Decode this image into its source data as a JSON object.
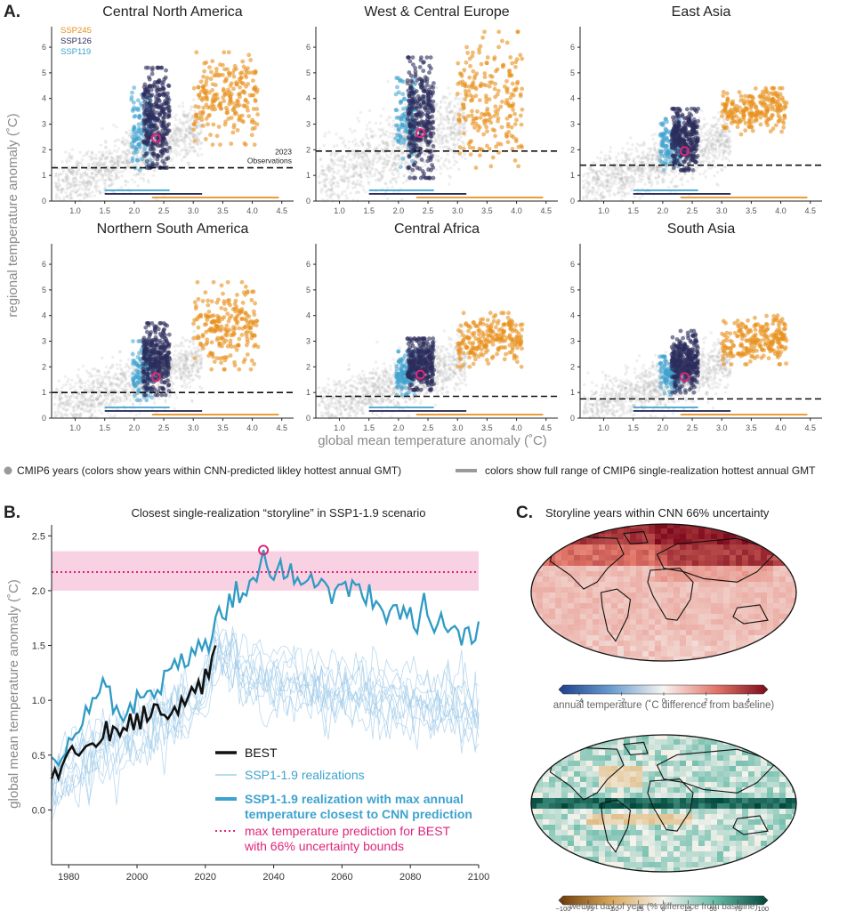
{
  "panel_letters": {
    "a": "A.",
    "b": "B.",
    "c": "C."
  },
  "panel_a": {
    "ylabel": "regional temperature anomaly (˚C)",
    "xlabel": "global mean temperature anomaly (˚C)",
    "legend_dots": "CMIP6 years (colors show years within CNN-predicted likley hottest annual GMT)",
    "legend_lines": "colors show full range of CMIP6 single-realization hottest annual GMT",
    "obs_label_1": "2023",
    "obs_label_2": "Observations",
    "scenarios": [
      {
        "name": "SSP245",
        "color": "#e8901a"
      },
      {
        "name": "SSP126",
        "color": "#2c2d5c"
      },
      {
        "name": "SSP119",
        "color": "#3ea2cf"
      }
    ],
    "ranges": {
      "SSP119": [
        1.5,
        2.6
      ],
      "SSP126": [
        1.5,
        3.15
      ],
      "SSP245": [
        2.3,
        4.45
      ]
    },
    "cloud_bounds": {
      "SSP119": [
        1.95,
        2.3
      ],
      "SSP126": [
        2.15,
        2.6
      ],
      "SSP245": [
        3.0,
        4.1
      ]
    }
  },
  "chart_data": [
    {
      "type": "scatter",
      "title": "Central North America",
      "xlim": [
        0.6,
        4.7
      ],
      "ylim": [
        0,
        6.8
      ],
      "xticks": [
        "1.0",
        "1.5",
        "2.0",
        "2.5",
        "3.0",
        "3.5",
        "4.0",
        "4.5"
      ],
      "yticks": [
        "0",
        "1",
        "2",
        "3",
        "4",
        "5",
        "6"
      ],
      "observation_2023": 1.3,
      "cnn_prediction": [
        2.37,
        2.45
      ],
      "cluster_y": {
        "SSP119": [
          1.2,
          4.6
        ],
        "SSP126": [
          1.3,
          5.2
        ],
        "SSP245": [
          2.2,
          5.8
        ]
      }
    },
    {
      "type": "scatter",
      "title": "West & Central Europe",
      "xlim": [
        0.6,
        4.7
      ],
      "ylim": [
        0,
        6.8
      ],
      "xticks": [
        "1.0",
        "1.5",
        "2.0",
        "2.5",
        "3.0",
        "3.5",
        "4.0",
        "4.5"
      ],
      "yticks": [
        "0",
        "1",
        "2",
        "3",
        "4",
        "5",
        "6"
      ],
      "observation_2023": 1.95,
      "cnn_prediction": [
        2.37,
        2.65
      ],
      "cluster_y": {
        "SSP119": [
          1.2,
          4.8
        ],
        "SSP126": [
          0.9,
          5.6
        ],
        "SSP245": [
          1.3,
          6.6
        ]
      }
    },
    {
      "type": "scatter",
      "title": "East Asia",
      "xlim": [
        0.6,
        4.7
      ],
      "ylim": [
        0,
        6.8
      ],
      "xticks": [
        "1.0",
        "1.5",
        "2.0",
        "2.5",
        "3.0",
        "3.5",
        "4.0",
        "4.5"
      ],
      "yticks": [
        "0",
        "1",
        "2",
        "3",
        "4",
        "5",
        "6"
      ],
      "observation_2023": 1.4,
      "cnn_prediction": [
        2.37,
        1.95
      ],
      "cluster_y": {
        "SSP119": [
          1.2,
          3.2
        ],
        "SSP126": [
          1.2,
          3.6
        ],
        "SSP245": [
          2.6,
          4.4
        ]
      }
    },
    {
      "type": "scatter",
      "title": "Northern South America",
      "xlim": [
        0.6,
        4.7
      ],
      "ylim": [
        0,
        6.8
      ],
      "xticks": [
        "1.0",
        "1.5",
        "2.0",
        "2.5",
        "3.0",
        "3.5",
        "4.0",
        "4.5"
      ],
      "yticks": [
        "0",
        "1",
        "2",
        "3",
        "4",
        "5",
        "6"
      ],
      "observation_2023": 1.0,
      "cnn_prediction": [
        2.37,
        1.6
      ],
      "cluster_y": {
        "SSP119": [
          0.7,
          3.0
        ],
        "SSP126": [
          0.9,
          3.7
        ],
        "SSP245": [
          1.9,
          5.3
        ]
      }
    },
    {
      "type": "scatter",
      "title": "Central Africa",
      "xlim": [
        0.6,
        4.7
      ],
      "ylim": [
        0,
        6.8
      ],
      "xticks": [
        "1.0",
        "1.5",
        "2.0",
        "2.5",
        "3.0",
        "3.5",
        "4.0",
        "4.5"
      ],
      "yticks": [
        "0",
        "1",
        "2",
        "3",
        "4",
        "5",
        "6"
      ],
      "observation_2023": 0.85,
      "cnn_prediction": [
        2.37,
        1.7
      ],
      "cluster_y": {
        "SSP119": [
          0.9,
          2.6
        ],
        "SSP126": [
          1.1,
          3.1
        ],
        "SSP245": [
          2.0,
          4.1
        ]
      }
    },
    {
      "type": "scatter",
      "title": "South Asia",
      "xlim": [
        0.6,
        4.7
      ],
      "ylim": [
        0,
        6.8
      ],
      "xticks": [
        "1.0",
        "1.5",
        "2.0",
        "2.5",
        "3.0",
        "3.5",
        "4.0",
        "4.5"
      ],
      "yticks": [
        "0",
        "1",
        "2",
        "3",
        "4",
        "5",
        "6"
      ],
      "observation_2023": 0.75,
      "cnn_prediction": [
        2.37,
        1.6
      ],
      "cluster_y": {
        "SSP119": [
          0.9,
          2.4
        ],
        "SSP126": [
          1.0,
          3.4
        ],
        "SSP245": [
          2.1,
          4.0
        ]
      }
    },
    {
      "type": "line",
      "title": "Closest single-realization “storyline” in SSP1-1.9 scenario",
      "xlim": [
        1975,
        2100
      ],
      "ylim": [
        -0.5,
        2.6
      ],
      "xticks": [
        1980,
        2000,
        2020,
        2040,
        2060,
        2080,
        2100
      ],
      "yticks": [
        "0.0",
        "0.5",
        "1.0",
        "1.5",
        "2.0",
        "2.5"
      ],
      "ylabel": "global mean temperature anomaly (˚C)",
      "cnn_prediction": 2.17,
      "uncertainty_band": [
        2.0,
        2.36
      ],
      "storyline_peak": {
        "x": 2037,
        "y": 2.37
      },
      "best_anchors": [
        [
          1975,
          0.28
        ],
        [
          1980,
          0.52
        ],
        [
          1985,
          0.55
        ],
        [
          1990,
          0.65
        ],
        [
          1995,
          0.72
        ],
        [
          2000,
          0.8
        ],
        [
          2005,
          0.9
        ],
        [
          2010,
          0.95
        ],
        [
          2015,
          1.05
        ],
        [
          2020,
          1.2
        ],
        [
          2023,
          1.5
        ]
      ],
      "storyline_anchors": [
        [
          1975,
          0.4
        ],
        [
          1980,
          0.55
        ],
        [
          1985,
          0.9
        ],
        [
          1990,
          1.1
        ],
        [
          1995,
          0.85
        ],
        [
          2000,
          0.95
        ],
        [
          2005,
          1.05
        ],
        [
          2010,
          1.25
        ],
        [
          2015,
          1.4
        ],
        [
          2020,
          1.55
        ],
        [
          2025,
          1.8
        ],
        [
          2030,
          1.95
        ],
        [
          2035,
          2.05
        ],
        [
          2037,
          2.37
        ],
        [
          2040,
          2.1
        ],
        [
          2045,
          2.15
        ],
        [
          2050,
          2.1
        ],
        [
          2055,
          2.05
        ],
        [
          2060,
          2.0
        ],
        [
          2065,
          2.0
        ],
        [
          2070,
          1.9
        ],
        [
          2075,
          1.85
        ],
        [
          2080,
          1.75
        ],
        [
          2085,
          1.75
        ],
        [
          2090,
          1.65
        ],
        [
          2095,
          1.6
        ],
        [
          2100,
          1.62
        ]
      ],
      "legend": [
        {
          "label": "BEST",
          "color": "#111111",
          "bold": false
        },
        {
          "label": "SSP1-1.9 realizations",
          "color": "#3ea2cf",
          "bold": false
        },
        {
          "label": "SSP1-1.9 realization with max annual",
          "label2": "temperature closest to CNN prediction",
          "color": "#3ea2cf",
          "bold": true
        },
        {
          "label": "max temperature prediction for BEST",
          "label2": "with 66% uncertainty bounds",
          "color": "#e0257a",
          "bold": false
        }
      ]
    },
    {
      "type": "heatmap",
      "title": "Storyline years within CNN 66% uncertainty",
      "colorbar_top": {
        "label": "annual temperature (˚C difference from baseline)",
        "ticks": [
          "−4",
          "−2",
          "0",
          "2",
          "4"
        ]
      },
      "colorbar_bottom": {
        "label": "wettest day of year (% difference from baseline)",
        "ticks": [
          "−100",
          "−75",
          "−50",
          "−25",
          "0",
          "25",
          "50",
          "75",
          "100"
        ]
      }
    }
  ]
}
